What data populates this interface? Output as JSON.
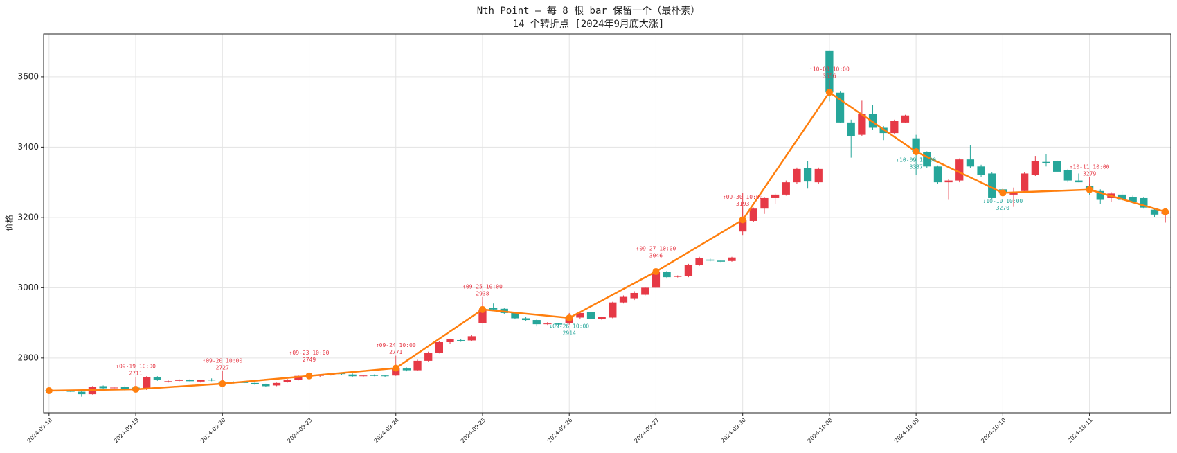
{
  "chart_data": {
    "type": "candlestick",
    "title": "Nth Point — 每 8 根 bar 保留一个（最朴素）",
    "subtitle": "14 个转折点 [2024年9月底大涨]",
    "y_label": "价格",
    "categories": [
      "2024-09-18",
      null,
      null,
      null,
      null,
      null,
      null,
      null,
      "2024-09-19",
      null,
      null,
      null,
      null,
      null,
      null,
      null,
      "2024-09-20",
      null,
      null,
      null,
      null,
      null,
      null,
      null,
      "2024-09-23",
      null,
      null,
      null,
      null,
      null,
      null,
      null,
      "2024-09-24",
      null,
      null,
      null,
      null,
      null,
      null,
      null,
      "2024-09-25",
      null,
      null,
      null,
      null,
      null,
      null,
      null,
      "2024-09-26",
      null,
      null,
      null,
      null,
      null,
      null,
      null,
      "2024-09-27",
      null,
      null,
      null,
      null,
      null,
      null,
      null,
      "2024-09-30",
      null,
      null,
      null,
      null,
      null,
      null,
      null,
      "2024-10-08",
      null,
      null,
      null,
      null,
      null,
      null,
      null,
      "2024-10-09",
      null,
      null,
      null,
      null,
      null,
      null,
      null,
      "2024-10-10",
      null,
      null,
      null,
      null,
      null,
      null,
      null,
      "2024-10-11",
      null,
      null,
      null,
      null,
      null,
      null,
      null
    ],
    "open": [
      2708,
      2707,
      2706,
      2704,
      2697,
      2720,
      2714,
      2718,
      2716,
      2711,
      2746,
      2733,
      2736,
      2738,
      2733,
      2738,
      2733,
      2732,
      2731,
      2729,
      2725,
      2722,
      2732,
      2738,
      2749,
      2750,
      2752,
      2756,
      2753,
      2749,
      2751,
      2750,
      2750,
      2770,
      2765,
      2792,
      2815,
      2845,
      2851,
      2850,
      2900,
      2942,
      2940,
      2928,
      2913,
      2908,
      2896,
      2898,
      2900,
      2915,
      2930,
      2912,
      2915,
      2958,
      2970,
      2980,
      3000,
      3045,
      3031,
      3033,
      3065,
      3080,
      3077,
      3076,
      3160,
      3190,
      3225,
      3255,
      3265,
      3300,
      3340,
      3300,
      3675,
      3555,
      3470,
      3435,
      3495,
      3455,
      3440,
      3470,
      3425,
      3385,
      3345,
      3300,
      3305,
      3365,
      3345,
      3325,
      3280,
      3265,
      3275,
      3320,
      3358,
      3360,
      3335,
      3305,
      3290,
      3275,
      3255,
      3265,
      3258,
      3255,
      3222,
      3210
    ],
    "high": [
      2710,
      2709,
      2708,
      2706,
      2720,
      2722,
      2718,
      2722,
      2720,
      2748,
      2748,
      2736,
      2740,
      2740,
      2738,
      2742,
      2735,
      2734,
      2733,
      2731,
      2727,
      2730,
      2740,
      2752,
      2756,
      2753,
      2756,
      2758,
      2756,
      2752,
      2753,
      2752,
      2775,
      2773,
      2795,
      2818,
      2847,
      2855,
      2854,
      2865,
      2960,
      2955,
      2943,
      2930,
      2916,
      2910,
      2902,
      2900,
      2928,
      2932,
      2933,
      2918,
      2960,
      2978,
      2990,
      3002,
      3050,
      3048,
      3035,
      3068,
      3088,
      3083,
      3079,
      3088,
      3270,
      3228,
      3258,
      3268,
      3305,
      3342,
      3360,
      3342,
      3675,
      3558,
      3478,
      3532,
      3520,
      3460,
      3478,
      3492,
      3435,
      3388,
      3348,
      3310,
      3368,
      3405,
      3350,
      3328,
      3284,
      3285,
      3328,
      3375,
      3380,
      3362,
      3338,
      3325,
      3295,
      3280,
      3272,
      3275,
      3262,
      3258,
      3225,
      3220
    ],
    "low": [
      2704,
      2704,
      2703,
      2690,
      2696,
      2712,
      2710,
      2706,
      2709,
      2709,
      2735,
      2730,
      2732,
      2732,
      2730,
      2734,
      2725,
      2726,
      2728,
      2723,
      2718,
      2720,
      2730,
      2736,
      2740,
      2746,
      2750,
      2752,
      2745,
      2746,
      2748,
      2746,
      2749,
      2762,
      2763,
      2790,
      2813,
      2840,
      2846,
      2848,
      2898,
      2935,
      2925,
      2910,
      2905,
      2890,
      2894,
      2890,
      2895,
      2910,
      2910,
      2908,
      2913,
      2955,
      2965,
      2978,
      2998,
      3026,
      3029,
      3030,
      3062,
      3075,
      3072,
      3074,
      3150,
      3186,
      3210,
      3238,
      3262,
      3295,
      3282,
      3296,
      3530,
      3468,
      3370,
      3432,
      3450,
      3420,
      3436,
      3468,
      3320,
      3340,
      3295,
      3250,
      3300,
      3340,
      3315,
      3252,
      3262,
      3230,
      3272,
      3318,
      3345,
      3328,
      3300,
      3300,
      3265,
      3238,
      3245,
      3245,
      3240,
      3225,
      3200,
      3185
    ],
    "close": [
      2707,
      2705,
      2704,
      2697,
      2718,
      2714,
      2716,
      2710,
      2711,
      2745,
      2737,
      2734,
      2737,
      2734,
      2737,
      2736,
      2727,
      2730,
      2730,
      2725,
      2720,
      2729,
      2738,
      2749,
      2750,
      2751,
      2755,
      2754,
      2748,
      2750,
      2749,
      2749,
      2771,
      2765,
      2792,
      2815,
      2845,
      2853,
      2850,
      2862,
      2938,
      2938,
      2928,
      2913,
      2908,
      2896,
      2898,
      2895,
      2914,
      2928,
      2912,
      2916,
      2958,
      2974,
      2985,
      3000,
      3046,
      3030,
      3033,
      3065,
      3085,
      3077,
      3074,
      3086,
      3193,
      3225,
      3255,
      3265,
      3300,
      3338,
      3302,
      3338,
      3556,
      3470,
      3432,
      3495,
      3455,
      3440,
      3475,
      3490,
      3387,
      3345,
      3300,
      3305,
      3365,
      3345,
      3320,
      3255,
      3270,
      3270,
      3325,
      3360,
      3355,
      3330,
      3305,
      3300,
      3279,
      3250,
      3268,
      3250,
      3245,
      3228,
      3208,
      3216
    ],
    "up_color": "#e63946",
    "down_color": "#26a69a",
    "turning_points": {
      "color": "#ff7f0e",
      "x": [
        0,
        8,
        16,
        24,
        32,
        40,
        48,
        56,
        64,
        72,
        80,
        88,
        96,
        103
      ],
      "values": [
        2707,
        2711,
        2727,
        2749,
        2771,
        2938,
        2914,
        3046,
        3193,
        3556,
        3387,
        3270,
        3279,
        3216
      ],
      "labels": [
        null,
        "↑09-19 10:00",
        "↑09-20 10:00",
        "↑09-23 10:00",
        "↑09-24 10:00",
        "↑09-25 10:00",
        "↓09-26 10:00",
        "↑09-27 10:00",
        "↑09-30 10:00",
        "↑10-08 10:00",
        "↓10-09 10:00",
        "↓10-10 10:00",
        "↑10-11 10:00",
        null
      ],
      "label_colors": [
        null,
        "#e63946",
        "#e63946",
        "#e63946",
        "#e63946",
        "#e63946",
        "#26a69a",
        "#e63946",
        "#e63946",
        "#e63946",
        "#26a69a",
        "#26a69a",
        "#e63946",
        null
      ]
    },
    "ylim": [
      2644,
      3722
    ],
    "yticks": [
      2800,
      3000,
      3200,
      3400,
      3600
    ],
    "grid": true
  }
}
